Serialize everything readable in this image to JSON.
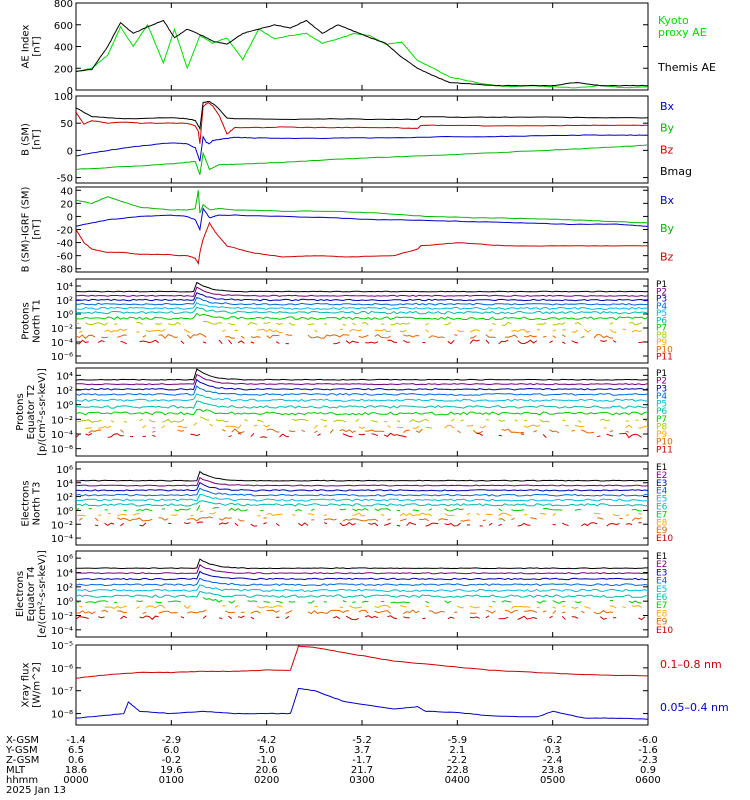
{
  "date_label": "2025 Jan 13",
  "panels": [
    {
      "ylabel": [
        "AE Index",
        "[nT]"
      ],
      "yticks": [
        {
          "v": 800,
          "l": "800"
        },
        {
          "v": 600,
          "l": "600"
        },
        {
          "v": 400,
          "l": "400"
        },
        {
          "v": 200,
          "l": "200"
        },
        {
          "v": 0,
          "l": "0"
        }
      ],
      "legend": [
        {
          "text": "Kyoto",
          "color": "#00dd00"
        },
        {
          "text": "proxy AE",
          "color": "#00dd00"
        },
        {
          "text": "Themis AE",
          "color": "#000000"
        }
      ]
    },
    {
      "ylabel": [
        "B (SM)",
        "[nT]"
      ],
      "yticks": [
        {
          "v": 100,
          "l": "100"
        },
        {
          "v": 50,
          "l": "50"
        },
        {
          "v": 0,
          "l": "0"
        },
        {
          "v": -50,
          "l": "-50"
        }
      ],
      "legend": [
        {
          "text": "Bx",
          "color": "#0000cc"
        },
        {
          "text": "By",
          "color": "#00bb00"
        },
        {
          "text": "Bz",
          "color": "#cc0000"
        },
        {
          "text": "Bmag",
          "color": "#000000"
        }
      ]
    },
    {
      "ylabel": [
        "B (SM)-IGRF (SM)",
        "[nT]"
      ],
      "yticks": [
        {
          "v": 40,
          "l": "40"
        },
        {
          "v": 20,
          "l": "20"
        },
        {
          "v": 0,
          "l": "0"
        },
        {
          "v": -20,
          "l": "-20"
        },
        {
          "v": -40,
          "l": "-40"
        },
        {
          "v": -60,
          "l": "-60"
        },
        {
          "v": -80,
          "l": "-80"
        }
      ],
      "legend": [
        {
          "text": "Bx",
          "color": "#0000cc"
        },
        {
          "text": "By",
          "color": "#00bb00"
        },
        {
          "text": "Bz",
          "color": "#cc0000"
        }
      ]
    },
    {
      "ylabel": [
        "Protons",
        "North T1"
      ],
      "yticks": [
        {
          "v": 4,
          "l": "10⁴"
        },
        {
          "v": 2,
          "l": "10²"
        },
        {
          "v": 0,
          "l": "10⁰"
        },
        {
          "v": -2,
          "l": "10⁻²"
        },
        {
          "v": -4,
          "l": "10⁻⁴"
        },
        {
          "v": -6,
          "l": "10⁻⁶"
        }
      ],
      "channels": [
        "P1",
        "P2",
        "P3",
        "P4",
        "P5",
        "P6",
        "P7",
        "P8",
        "P9",
        "P10",
        "P11"
      ]
    },
    {
      "ylabel": [
        "Protons",
        "Equator T2",
        "[p/(cm²-s-sr-keV)]"
      ],
      "yticks": [
        {
          "v": 4,
          "l": "10⁴"
        },
        {
          "v": 2,
          "l": "10²"
        },
        {
          "v": 0,
          "l": "10⁰"
        },
        {
          "v": -2,
          "l": "10⁻²"
        },
        {
          "v": -4,
          "l": "10⁻⁴"
        },
        {
          "v": -6,
          "l": "10⁻⁶"
        }
      ],
      "channels": [
        "P1",
        "P2",
        "P3",
        "P4",
        "P5",
        "P6",
        "P7",
        "P8",
        "P9",
        "P10",
        "P11"
      ]
    },
    {
      "ylabel": [
        "Electrons",
        "North T3"
      ],
      "yticks": [
        {
          "v": 6,
          "l": "10⁶"
        },
        {
          "v": 4,
          "l": "10⁴"
        },
        {
          "v": 2,
          "l": "10²"
        },
        {
          "v": 0,
          "l": "10⁰"
        },
        {
          "v": -2,
          "l": "10⁻²"
        },
        {
          "v": -4,
          "l": "10⁻⁴"
        }
      ],
      "channels": [
        "E1",
        "E2",
        "E3",
        "E4",
        "E5",
        "E6",
        "E7",
        "E8",
        "E9",
        "E10"
      ]
    },
    {
      "ylabel": [
        "Electrons",
        "Equator T4",
        "[e/(cm²-s-sr-keV)]"
      ],
      "yticks": [
        {
          "v": 6,
          "l": "10⁶"
        },
        {
          "v": 4,
          "l": "10⁴"
        },
        {
          "v": 2,
          "l": "10²"
        },
        {
          "v": 0,
          "l": "10⁰"
        },
        {
          "v": -2,
          "l": "10⁻²"
        },
        {
          "v": -4,
          "l": "10⁻⁴"
        }
      ],
      "channels": [
        "E1",
        "E2",
        "E3",
        "E4",
        "E5",
        "E6",
        "E7",
        "E8",
        "E9",
        "E10"
      ]
    },
    {
      "ylabel": [
        "Xray flux",
        "[W/m^2]"
      ],
      "yticks": [
        {
          "v": -5,
          "l": "10⁻⁵"
        },
        {
          "v": -6,
          "l": "10⁻⁶"
        },
        {
          "v": -7,
          "l": "10⁻⁷"
        },
        {
          "v": -8,
          "l": "10⁻⁸"
        }
      ],
      "legend": [
        {
          "text": "0.1–0.8 nm",
          "color": "#cc0000"
        },
        {
          "text": "0.05–0.4 nm",
          "color": "#0000cc"
        }
      ]
    }
  ],
  "ephemeris": {
    "labels": [
      "X-GSM",
      "Y-GSM",
      "Z-GSM",
      "MLT",
      "hhmm"
    ],
    "rows": [
      [
        "-1.4",
        "-2.9",
        "-4.2",
        "-5.2",
        "-5.9",
        "-6.2",
        "-6.0"
      ],
      [
        "6.5",
        "6.0",
        "5.0",
        "3.7",
        "2.1",
        "0.3",
        "-1.6"
      ],
      [
        "0.6",
        "-0.2",
        "-1.0",
        "-1.7",
        "-2.2",
        "-2.4",
        "-2.3"
      ],
      [
        "18.6",
        "19.6",
        "20.6",
        "21.7",
        "22.8",
        "23.8",
        "0.9"
      ],
      [
        "0000",
        "0100",
        "0200",
        "0300",
        "0400",
        "0500",
        "0600"
      ]
    ]
  },
  "channel_colors": {
    "P": [
      "#000000",
      "#770077",
      "#0000aa",
      "#0066dd",
      "#00bbdd",
      "#00bbaa",
      "#00cc00",
      "#aacc00",
      "#ffaa00",
      "#dd6600",
      "#cc0000"
    ],
    "E": [
      "#000000",
      "#770077",
      "#0000aa",
      "#0066dd",
      "#00bbdd",
      "#00bbaa",
      "#00cc00",
      "#ffaa00",
      "#dd6600",
      "#cc0000"
    ]
  },
  "chart_data": [
    {
      "type": "line",
      "panel": 0,
      "ylim": [
        0,
        800
      ],
      "xlim": [
        0,
        360
      ],
      "series": [
        {
          "name": "Kyoto proxy AE",
          "color": "#00dd00",
          "x": [
            0,
            10,
            20,
            28,
            36,
            45,
            55,
            62,
            70,
            78,
            86,
            95,
            105,
            115,
            125,
            135,
            145,
            155,
            165,
            175,
            185,
            195,
            205,
            215,
            225,
            235,
            245,
            255,
            265,
            275,
            285,
            300,
            315,
            330,
            345,
            360
          ],
          "y": [
            170,
            200,
            320,
            580,
            400,
            600,
            250,
            560,
            200,
            500,
            430,
            480,
            280,
            560,
            470,
            500,
            520,
            430,
            470,
            520,
            500,
            420,
            440,
            270,
            200,
            120,
            90,
            60,
            40,
            30,
            40,
            30,
            20,
            40,
            20,
            30
          ]
        },
        {
          "name": "Themis AE",
          "color": "#000000",
          "x": [
            0,
            10,
            20,
            28,
            36,
            45,
            55,
            62,
            70,
            78,
            86,
            95,
            105,
            115,
            125,
            135,
            145,
            155,
            165,
            175,
            185,
            195,
            205,
            215,
            225,
            235,
            245,
            255,
            265,
            275,
            285,
            300,
            315,
            330,
            345,
            360
          ],
          "y": [
            170,
            190,
            400,
            620,
            520,
            580,
            640,
            480,
            560,
            510,
            450,
            420,
            520,
            560,
            600,
            570,
            640,
            520,
            600,
            540,
            480,
            430,
            300,
            200,
            130,
            70,
            60,
            50,
            40,
            40,
            40,
            40,
            70,
            40,
            40,
            40
          ]
        }
      ]
    },
    {
      "type": "line",
      "panel": 1,
      "ylim": [
        -60,
        100
      ],
      "xlim": [
        0,
        360
      ],
      "series": [
        {
          "name": "Bx",
          "color": "#0000cc",
          "x": [
            0,
            20,
            40,
            60,
            70,
            75,
            78,
            80,
            82,
            84,
            86,
            90,
            95,
            100,
            110,
            130,
            150,
            170,
            200,
            230,
            260,
            290,
            320,
            345,
            360
          ],
          "y": [
            -10,
            0,
            8,
            14,
            12,
            5,
            -20,
            25,
            15,
            12,
            18,
            20,
            22,
            24,
            23,
            22,
            22,
            23,
            23,
            25,
            25,
            27,
            28,
            28,
            28
          ]
        },
        {
          "name": "By",
          "color": "#00bb00",
          "x": [
            0,
            30,
            60,
            70,
            75,
            78,
            80,
            84,
            90,
            100,
            130,
            160,
            190,
            220,
            250,
            280,
            310,
            340,
            360
          ],
          "y": [
            -35,
            -30,
            -25,
            -22,
            -20,
            -45,
            -5,
            -35,
            -26,
            -26,
            -22,
            -17,
            -13,
            -10,
            -6,
            -2,
            2,
            6,
            10
          ]
        },
        {
          "name": "Bz",
          "color": "#cc0000",
          "x": [
            0,
            5,
            10,
            20,
            30,
            40,
            60,
            70,
            75,
            77,
            78,
            80,
            83,
            86,
            90,
            95,
            100,
            115,
            130,
            150,
            170,
            200,
            215,
            217,
            230,
            260,
            290,
            320,
            345,
            360
          ],
          "y": [
            70,
            48,
            55,
            50,
            52,
            50,
            50,
            50,
            45,
            35,
            12,
            80,
            88,
            82,
            65,
            30,
            42,
            42,
            43,
            42,
            42,
            42,
            40,
            46,
            46,
            45,
            45,
            46,
            46,
            46
          ]
        },
        {
          "name": "Bmag",
          "color": "#000000",
          "x": [
            0,
            10,
            30,
            60,
            70,
            75,
            78,
            80,
            84,
            88,
            95,
            100,
            130,
            160,
            190,
            215,
            217,
            240,
            270,
            300,
            330,
            360
          ],
          "y": [
            78,
            62,
            58,
            60,
            58,
            55,
            40,
            88,
            90,
            82,
            60,
            58,
            57,
            58,
            57,
            57,
            62,
            61,
            61,
            61,
            60,
            60
          ]
        }
      ]
    },
    {
      "type": "line",
      "panel": 2,
      "ylim": [
        -85,
        45
      ],
      "xlim": [
        0,
        360
      ],
      "series": [
        {
          "name": "Bx",
          "color": "#0000cc",
          "x": [
            0,
            20,
            40,
            60,
            70,
            75,
            78,
            80,
            84,
            90,
            100,
            130,
            160,
            190,
            220,
            250,
            280,
            310,
            340,
            360
          ],
          "y": [
            -15,
            -5,
            0,
            2,
            0,
            -5,
            -20,
            12,
            -2,
            2,
            2,
            0,
            -2,
            -5,
            -6,
            -8,
            -10,
            -12,
            -12,
            -15
          ]
        },
        {
          "name": "By",
          "color": "#00bb00",
          "x": [
            0,
            10,
            20,
            40,
            60,
            70,
            75,
            77,
            78,
            80,
            84,
            90,
            100,
            130,
            160,
            190,
            220,
            250,
            280,
            310,
            340,
            360
          ],
          "y": [
            25,
            20,
            30,
            14,
            10,
            10,
            12,
            40,
            5,
            18,
            10,
            12,
            10,
            8,
            8,
            5,
            0,
            -2,
            -3,
            -5,
            -8,
            -10
          ]
        },
        {
          "name": "Bz",
          "color": "#cc0000",
          "x": [
            0,
            5,
            10,
            20,
            30,
            40,
            55,
            65,
            70,
            75,
            77,
            78,
            80,
            84,
            88,
            95,
            110,
            130,
            150,
            170,
            200,
            215,
            217,
            240,
            270,
            300,
            330,
            360
          ],
          "y": [
            -20,
            -40,
            -50,
            -55,
            -55,
            -58,
            -58,
            -60,
            -60,
            -64,
            -72,
            -55,
            -35,
            -10,
            -25,
            -45,
            -55,
            -62,
            -60,
            -62,
            -60,
            -50,
            -45,
            -40,
            -45,
            -45,
            -45,
            -45
          ]
        }
      ]
    },
    {
      "type": "line",
      "panel": 3,
      "log": true,
      "ylim": [
        -7,
        5
      ],
      "xlim": [
        0,
        360
      ],
      "channel_levels": [
        3.2,
        2.6,
        2.0,
        1.4,
        0.8,
        0.2,
        -0.6,
        -1.4,
        -2.4,
        -3.2,
        -4.0
      ],
      "spike": {
        "x": 76,
        "amp": 1.3
      }
    },
    {
      "type": "line",
      "panel": 4,
      "log": true,
      "ylim": [
        -7,
        5
      ],
      "xlim": [
        0,
        360
      ],
      "channel_levels": [
        3.4,
        2.8,
        2.1,
        1.4,
        0.6,
        -0.3,
        -1.2,
        -2.2,
        -3.0,
        -3.6,
        -4.2
      ],
      "spike": {
        "x": 76,
        "amp": 1.5
      }
    },
    {
      "type": "line",
      "panel": 5,
      "log": true,
      "ylim": [
        -5,
        7
      ],
      "xlim": [
        0,
        360
      ],
      "channel_levels": [
        4.3,
        3.6,
        2.9,
        2.2,
        1.5,
        0.8,
        0.1,
        -0.6,
        -1.3,
        -2.0
      ],
      "spike": {
        "x": 78,
        "amp": 1.3
      }
    },
    {
      "type": "line",
      "panel": 6,
      "log": true,
      "ylim": [
        -5,
        7
      ],
      "xlim": [
        0,
        360
      ],
      "channel_levels": [
        4.6,
        3.9,
        3.1,
        2.3,
        1.5,
        0.7,
        -0.1,
        -0.8,
        -1.5,
        -2.3
      ],
      "spike": {
        "x": 78,
        "amp": 1.3
      }
    },
    {
      "type": "line",
      "panel": 7,
      "log": true,
      "ylim": [
        -8.5,
        -5
      ],
      "xlim": [
        0,
        360
      ],
      "series": [
        {
          "name": "0.1–0.8 nm",
          "color": "#cc0000",
          "x": [
            0,
            20,
            40,
            60,
            80,
            100,
            120,
            135,
            140,
            150,
            170,
            200,
            230,
            260,
            290,
            320,
            360
          ],
          "y": [
            -6.45,
            -6.3,
            -6.2,
            -6.2,
            -6.15,
            -6.15,
            -6.1,
            -6.1,
            -5.05,
            -5.1,
            -5.35,
            -5.7,
            -5.9,
            -6.1,
            -6.2,
            -6.3,
            -6.35
          ]
        },
        {
          "name": "0.05–0.4 nm",
          "color": "#0000cc",
          "x": [
            0,
            15,
            30,
            33,
            40,
            60,
            80,
            100,
            120,
            135,
            140,
            150,
            170,
            200,
            215,
            220,
            240,
            260,
            290,
            300,
            320,
            340,
            360
          ],
          "y": [
            -8.2,
            -8.1,
            -8.0,
            -7.5,
            -7.9,
            -8.0,
            -7.9,
            -8.0,
            -8.0,
            -8.0,
            -6.9,
            -7.0,
            -7.5,
            -7.8,
            -7.7,
            -7.9,
            -7.95,
            -8.1,
            -8.15,
            -7.9,
            -8.2,
            -8.2,
            -8.25
          ]
        }
      ]
    }
  ]
}
